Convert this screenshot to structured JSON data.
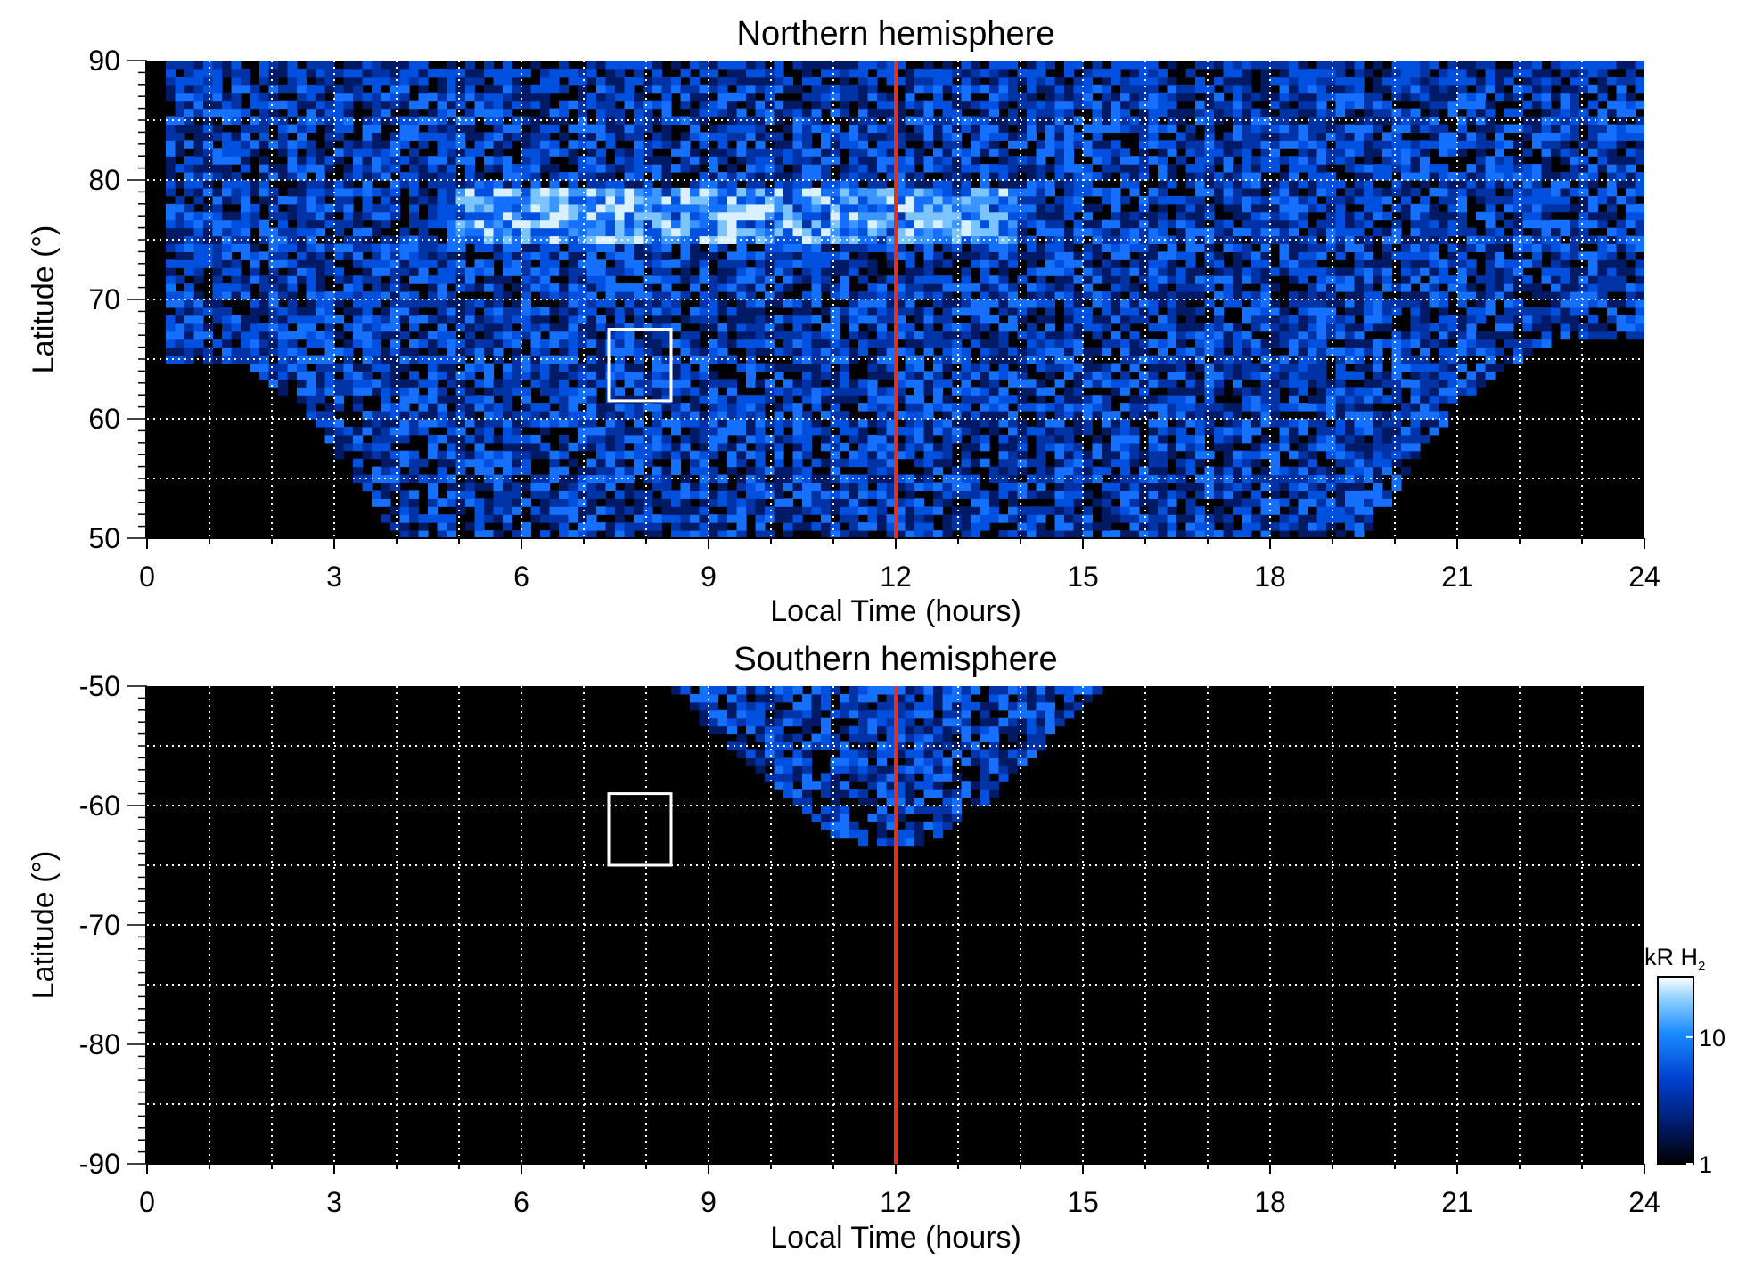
{
  "chart_data": [
    {
      "type": "heatmap",
      "title": "Northern hemisphere",
      "xlabel": "Local Time (hours)",
      "ylabel": "Latitude (°)",
      "xlim": [
        0,
        24
      ],
      "ylim": [
        50,
        90
      ],
      "xticks": [
        "0",
        "3",
        "6",
        "9",
        "12",
        "15",
        "18",
        "21",
        "24"
      ],
      "yticks": [
        "50",
        "60",
        "70",
        "80",
        "90"
      ],
      "grid": true,
      "background_color": "#000000",
      "noon_line": {
        "x": 12,
        "color": "#e0301e"
      },
      "highlight_box": {
        "x": [
          7.4,
          8.4
        ],
        "y": [
          61.5,
          67.5
        ],
        "color": "#ffffff"
      },
      "bright_band": {
        "y_center": 77,
        "x_range": [
          5,
          14
        ]
      },
      "coverage_boundary": [
        [
          0.3,
          65
        ],
        [
          1.5,
          65
        ],
        [
          2.5,
          61
        ],
        [
          3.5,
          54
        ],
        [
          4.0,
          50
        ],
        [
          19.5,
          50
        ],
        [
          20.5,
          58
        ],
        [
          21.5,
          63.5
        ],
        [
          22.8,
          67
        ],
        [
          24,
          67
        ]
      ]
    },
    {
      "type": "heatmap",
      "title": "Southern hemisphere",
      "xlabel": "Local Time (hours)",
      "ylabel": "Latitude (°)",
      "xlim": [
        0,
        24
      ],
      "ylim": [
        -90,
        -50
      ],
      "xticks": [
        "0",
        "3",
        "6",
        "9",
        "12",
        "15",
        "18",
        "21",
        "24"
      ],
      "yticks": [
        "-50",
        "-60",
        "-70",
        "-80",
        "-90"
      ],
      "grid": true,
      "background_color": "#000000",
      "noon_line": {
        "x": 12,
        "color": "#e0301e"
      },
      "highlight_box": {
        "x": [
          7.4,
          8.4
        ],
        "y": [
          -65,
          -59
        ],
        "color": "#ffffff"
      },
      "coverage_boundary": [
        [
          8.3,
          -50
        ],
        [
          9.5,
          -56
        ],
        [
          10.8,
          -62
        ],
        [
          11.6,
          -63.5
        ],
        [
          12.5,
          -63.5
        ],
        [
          13.6,
          -59
        ],
        [
          14.7,
          -53
        ],
        [
          15.3,
          -50
        ]
      ]
    }
  ],
  "colorbar": {
    "label_main": "kR H",
    "label_sub": "2",
    "scale": "log",
    "range": [
      1,
      30
    ],
    "ticks": [
      "10",
      "1"
    ],
    "colors": [
      "#000000",
      "#001a66",
      "#0040d0",
      "#1a8cff",
      "#8fd0ff",
      "#ffffff"
    ]
  }
}
